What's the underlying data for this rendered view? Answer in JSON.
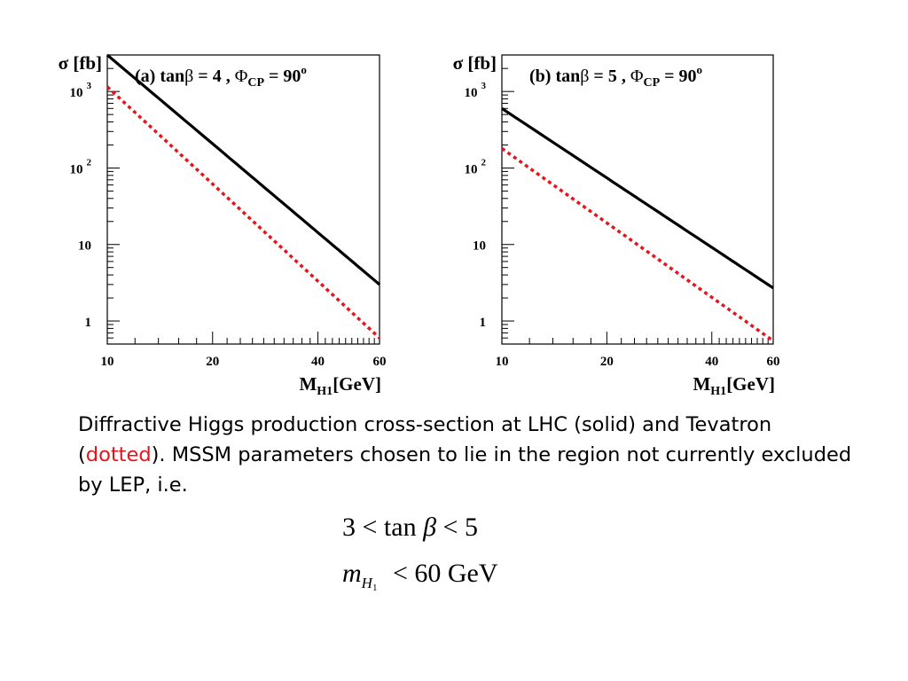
{
  "chart_data": [
    {
      "type": "line",
      "title_prefix": "(a) tan",
      "title_beta": "β",
      "title_mid": " = 4 , ",
      "title_phi": "Φ",
      "title_sub": "CP",
      "title_end": " = 90",
      "title_sup": "o",
      "ylabel": "σ [fb]",
      "xlabel_main": "M",
      "xlabel_sub": "H1",
      "xlabel_unit": "[GeV]",
      "x_scale": "log",
      "y_scale": "log",
      "xlim": [
        10,
        60
      ],
      "ylim": [
        0.5,
        3000
      ],
      "x_ticks": [
        {
          "value": 10,
          "label": "10"
        },
        {
          "value": 20,
          "label": "20"
        },
        {
          "value": 40,
          "label": "40"
        },
        {
          "value": 60,
          "label": "60"
        }
      ],
      "y_ticks": [
        {
          "value": 1,
          "label": "1",
          "sup": ""
        },
        {
          "value": 10,
          "label": "10",
          "sup": ""
        },
        {
          "value": 100,
          "label": "10",
          "sup": "2"
        },
        {
          "value": 1000,
          "label": "10",
          "sup": "3"
        }
      ],
      "series": [
        {
          "style": "solid",
          "color": "#000000",
          "x": [
            10,
            60
          ],
          "y": [
            3000,
            3.0
          ]
        },
        {
          "style": "dotted",
          "color": "#e8141b",
          "x": [
            10,
            60
          ],
          "y": [
            1150,
            0.6
          ]
        }
      ]
    },
    {
      "type": "line",
      "title_prefix": "(b) tan",
      "title_beta": "β",
      "title_mid": " = 5 , ",
      "title_phi": "Φ",
      "title_sub": "CP",
      "title_end": " = 90",
      "title_sup": "o",
      "ylabel": "σ [fb]",
      "xlabel_main": "M",
      "xlabel_sub": "H1",
      "xlabel_unit": "[GeV]",
      "x_scale": "log",
      "y_scale": "log",
      "xlim": [
        10,
        60
      ],
      "ylim": [
        0.5,
        3000
      ],
      "x_ticks": [
        {
          "value": 10,
          "label": "10"
        },
        {
          "value": 20,
          "label": "20"
        },
        {
          "value": 40,
          "label": "40"
        },
        {
          "value": 60,
          "label": "60"
        }
      ],
      "y_ticks": [
        {
          "value": 1,
          "label": "1",
          "sup": ""
        },
        {
          "value": 10,
          "label": "10",
          "sup": ""
        },
        {
          "value": 100,
          "label": "10",
          "sup": "2"
        },
        {
          "value": 1000,
          "label": "10",
          "sup": "3"
        }
      ],
      "series": [
        {
          "style": "solid",
          "color": "#000000",
          "x": [
            10,
            60
          ],
          "y": [
            600,
            2.7
          ]
        },
        {
          "style": "dotted",
          "color": "#e8141b",
          "x": [
            10,
            60
          ],
          "y": [
            180,
            0.55
          ]
        }
      ]
    }
  ],
  "caption": {
    "part1": "Diffractive Higgs production cross-section at LHC (solid) and Tevatron (",
    "dotted_word": "dotted",
    "part2": "). MSSM parameters chosen to lie in the region not currently excluded by LEP, i.e."
  },
  "equation1": {
    "lhs": "3",
    "op1": "<",
    "fn": "tan",
    "var": "β",
    "op2": "<",
    "rhs": "5"
  },
  "equation2": {
    "var": "m",
    "sub": "H",
    "subsub": "1",
    "op": "<",
    "value": "60",
    "unit": "GeV"
  }
}
